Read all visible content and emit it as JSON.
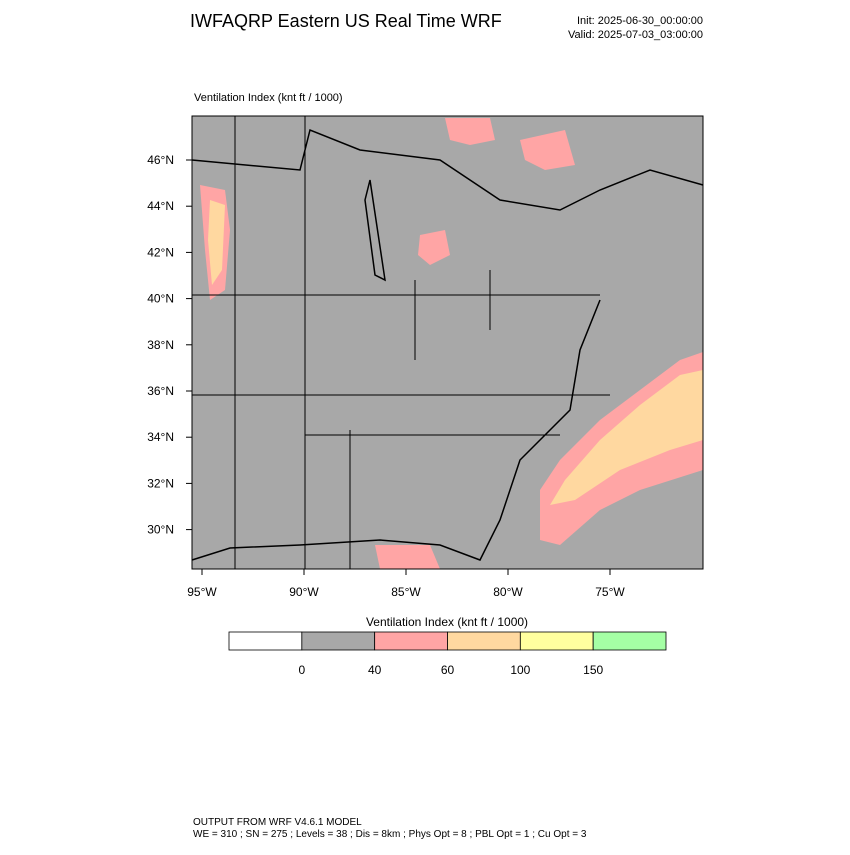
{
  "header": {
    "title": "IWFAQRP Eastern US Real Time WRF",
    "init": "Init: 2025-06-30_00:00:00",
    "valid": "Valid: 2025-07-03_03:00:00"
  },
  "map": {
    "label": "Ventilation Index   (knt ft / 1000)",
    "lat_labels": [
      "46°N",
      "44°N",
      "42°N",
      "40°N",
      "38°N",
      "36°N",
      "34°N",
      "32°N",
      "30°N"
    ],
    "lon_labels": [
      "95°W",
      "90°W",
      "85°W",
      "80°W",
      "75°W"
    ]
  },
  "colorbar": {
    "title": "Ventilation Index  (knt ft / 1000)",
    "colors": [
      "#ffffff",
      "#a8a8a8",
      "#ffa5a5",
      "#ffd8a0",
      "#ffff9f",
      "#a5ffa5"
    ],
    "ticks": [
      0,
      40,
      60,
      100,
      150
    ]
  },
  "footer": {
    "line1": "OUTPUT FROM WRF V4.6.1 MODEL",
    "line2": "WE = 310 ; SN = 275 ; Levels = 38 ; Dis = 8km ; Phys Opt = 8 ; PBL Opt = 1 ; Cu Opt = 3"
  }
}
